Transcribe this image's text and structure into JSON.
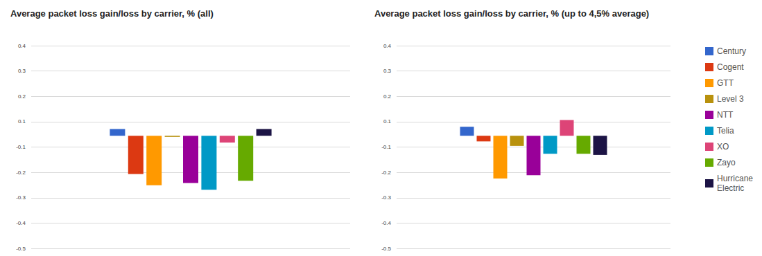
{
  "chart_data": [
    {
      "type": "bar",
      "title": "Average packet loss gain/loss by carrier, % (all)",
      "series": [
        {
          "name": "Century",
          "color": "#3366cc",
          "values": [
            0.03
          ]
        },
        {
          "name": "Cogent",
          "color": "#dc3912",
          "values": [
            -0.17
          ]
        },
        {
          "name": "GTT",
          "color": "#ff9900",
          "values": [
            -0.22
          ]
        },
        {
          "name": "Level 3",
          "color": "#b8910d",
          "values": [
            -0.005
          ]
        },
        {
          "name": "NTT",
          "color": "#990099",
          "values": [
            -0.21
          ]
        },
        {
          "name": "Telia",
          "color": "#0099c6",
          "values": [
            -0.24
          ]
        },
        {
          "name": "XO",
          "color": "#dd4477",
          "values": [
            -0.03
          ]
        },
        {
          "name": "Zayo",
          "color": "#66aa00",
          "values": [
            -0.2
          ]
        },
        {
          "name": "Hurricane Electric",
          "color": "#1c1445",
          "values": [
            0.03
          ]
        }
      ],
      "ylim": [
        -0.5,
        0.4
      ],
      "yticks": [
        {
          "value": -0.5,
          "label": "-0.5"
        },
        {
          "value": -0.3875,
          "label": "-0.4"
        },
        {
          "value": -0.275,
          "label": "-0.3"
        },
        {
          "value": -0.1625,
          "label": "-0.2"
        },
        {
          "value": -0.05,
          "label": "-0.1"
        },
        {
          "value": 0.0625,
          "label": "0.1"
        },
        {
          "value": 0.175,
          "label": "0.2"
        },
        {
          "value": 0.2875,
          "label": "0.3"
        },
        {
          "value": 0.4,
          "label": "0.4"
        }
      ],
      "grid": true,
      "tick_labels": "y"
    },
    {
      "type": "bar",
      "title": "Average packet loss gain/loss by carrier, % (up to 4,5% average)",
      "series": [
        {
          "name": "Century",
          "color": "#3366cc",
          "values": [
            0.04
          ]
        },
        {
          "name": "Cogent",
          "color": "#dc3912",
          "values": [
            -0.025
          ]
        },
        {
          "name": "GTT",
          "color": "#ff9900",
          "values": [
            -0.19
          ]
        },
        {
          "name": "Level 3",
          "color": "#b8910d",
          "values": [
            -0.045
          ]
        },
        {
          "name": "NTT",
          "color": "#990099",
          "values": [
            -0.175
          ]
        },
        {
          "name": "Telia",
          "color": "#0099c6",
          "values": [
            -0.08
          ]
        },
        {
          "name": "XO",
          "color": "#dd4477",
          "values": [
            0.07
          ]
        },
        {
          "name": "Zayo",
          "color": "#66aa00",
          "values": [
            -0.08
          ]
        },
        {
          "name": "Hurricane Electric",
          "color": "#1c1445",
          "values": [
            -0.085
          ]
        }
      ],
      "ylim": [
        -0.5,
        0.4
      ],
      "yticks": [
        {
          "value": -0.5,
          "label": "-0.5"
        },
        {
          "value": -0.3875,
          "label": "-0.4"
        },
        {
          "value": -0.275,
          "label": "-0.3"
        },
        {
          "value": -0.1625,
          "label": "-0.2"
        },
        {
          "value": -0.05,
          "label": "-0.1"
        },
        {
          "value": 0.0625,
          "label": "0.1"
        },
        {
          "value": 0.175,
          "label": "0.2"
        },
        {
          "value": 0.2875,
          "label": "0.3"
        },
        {
          "value": 0.4,
          "label": "0.4"
        }
      ],
      "grid": true,
      "tick_labels": "y",
      "legend": "right"
    }
  ]
}
